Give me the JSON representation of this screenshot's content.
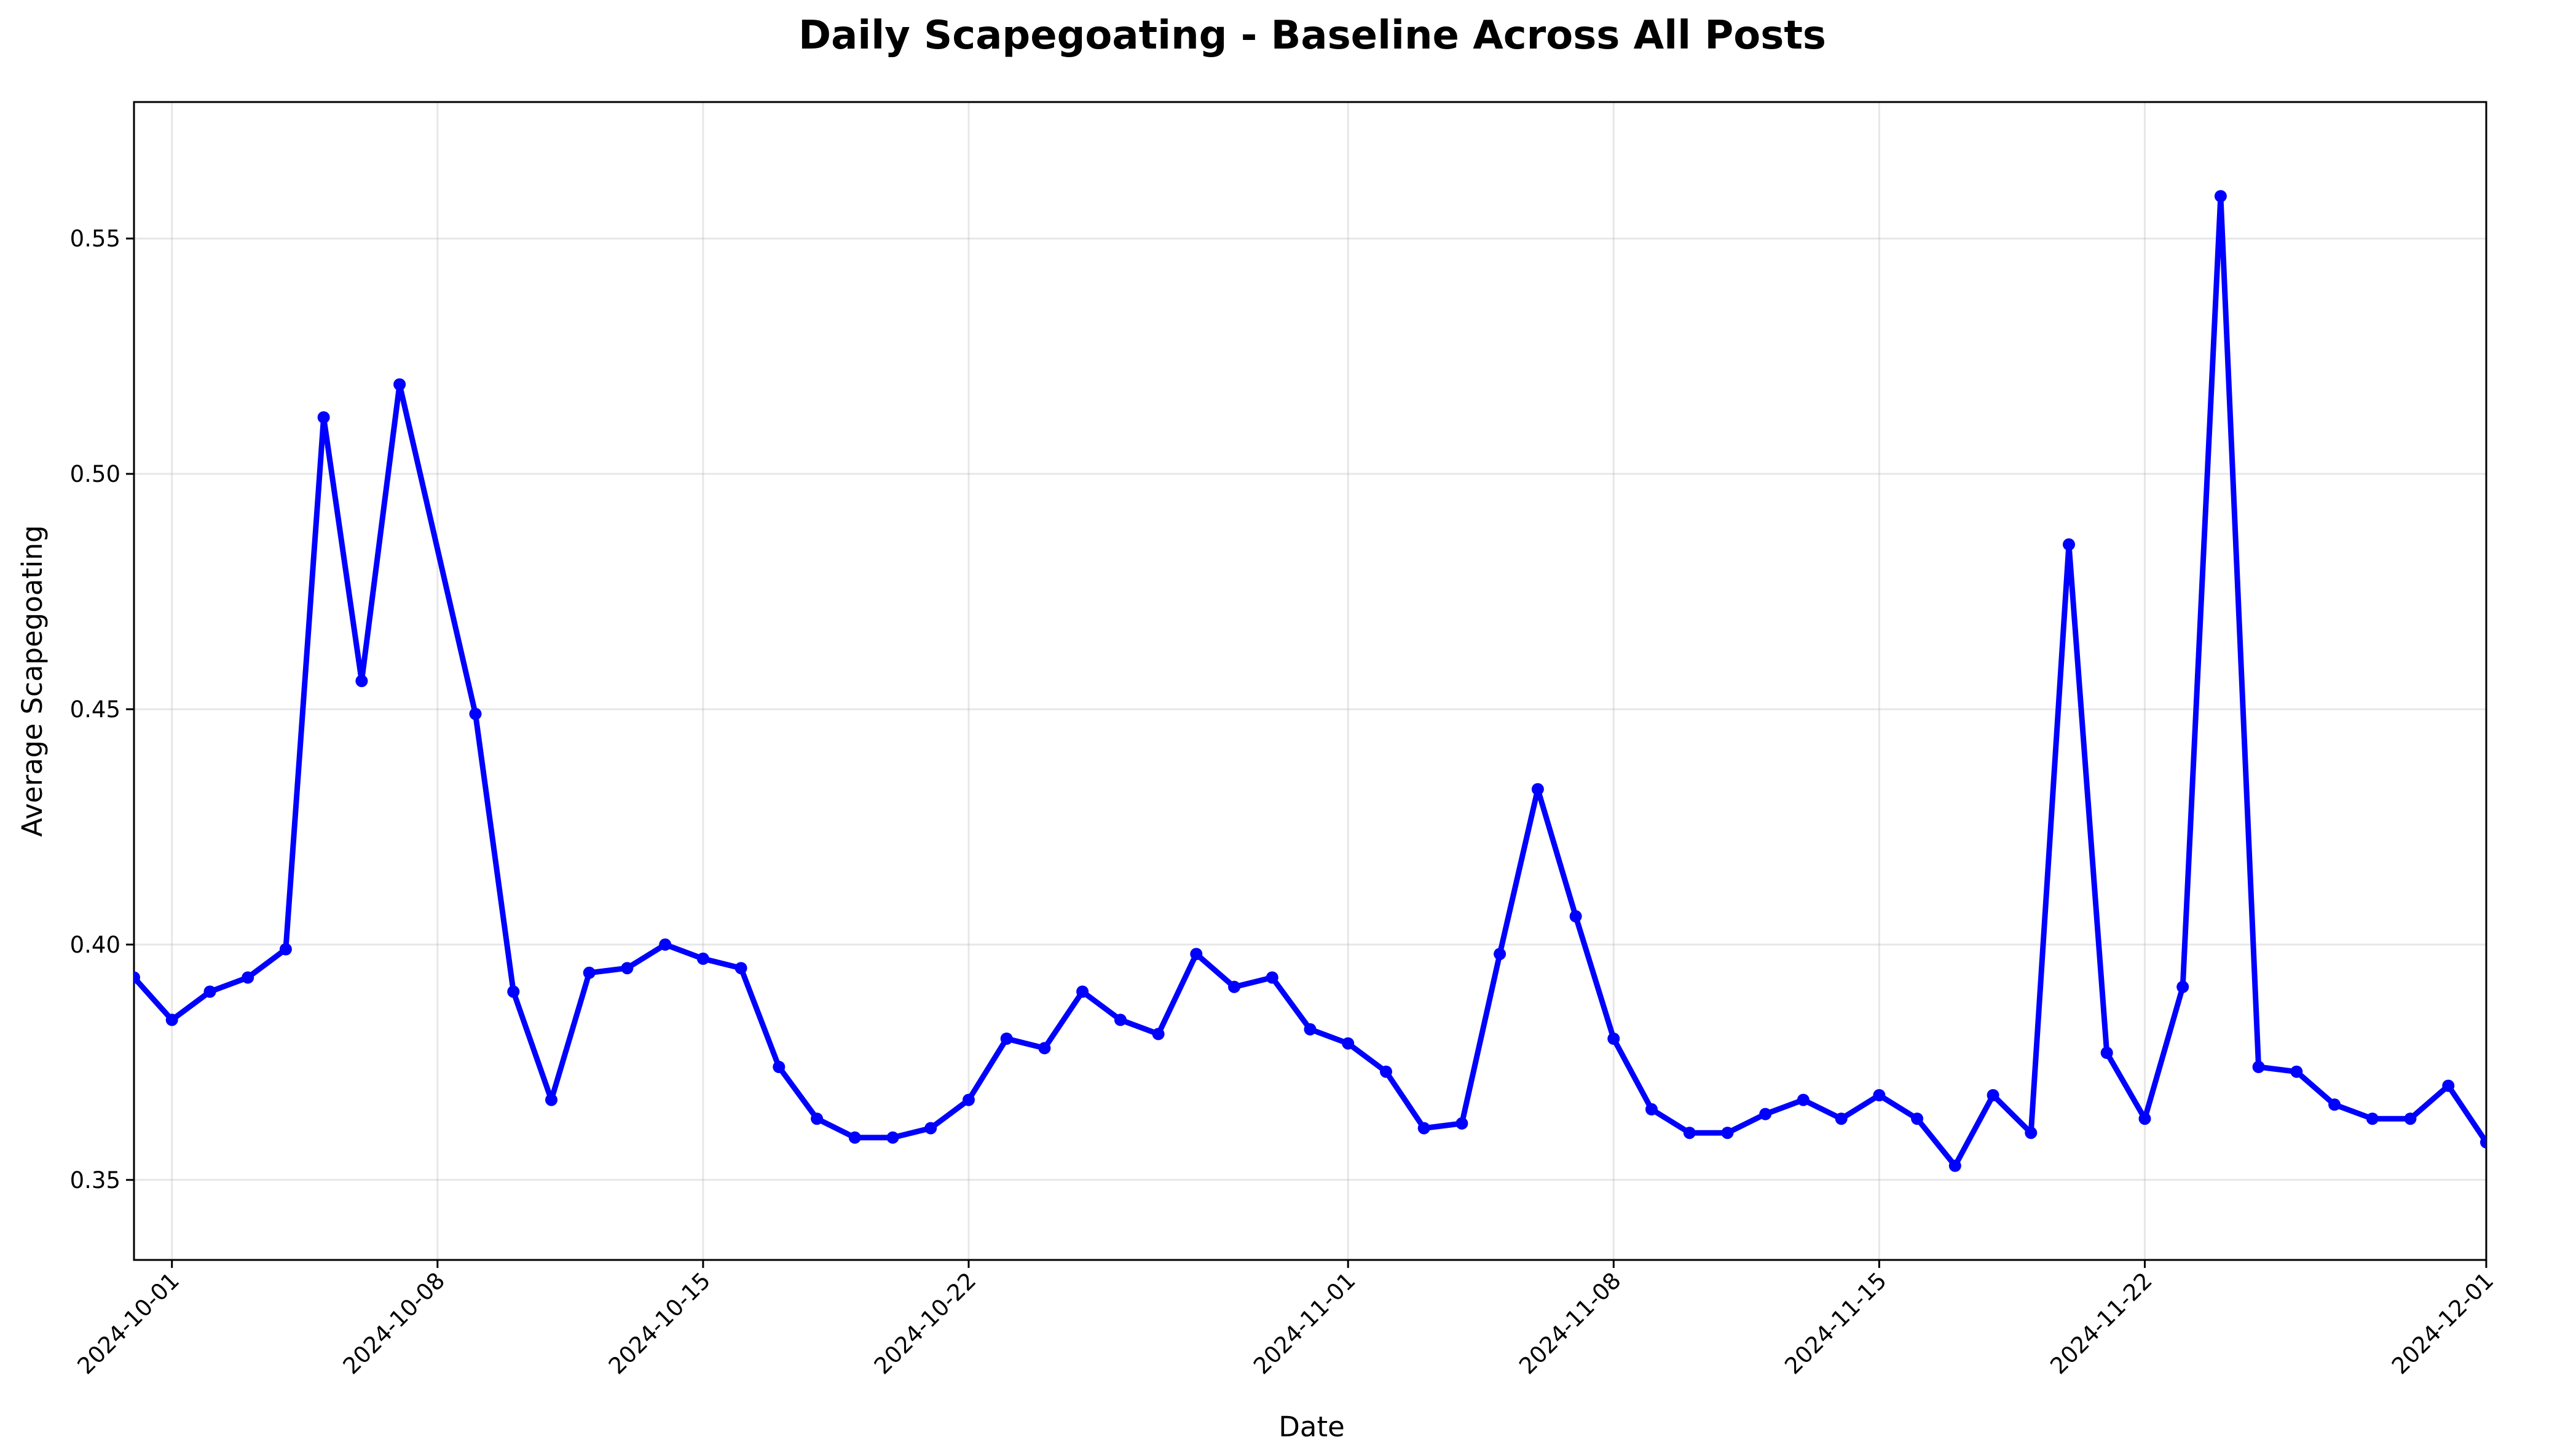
{
  "chart_data": {
    "type": "line",
    "title": "Daily Scapegoating - Baseline Across All Posts",
    "xlabel": "Date",
    "ylabel": "Average Scapegoating",
    "x_range": [
      "2024-09-30",
      "2024-12-01"
    ],
    "ylim": [
      0.333,
      0.579
    ],
    "grid": true,
    "legend": "none",
    "line_color": "#0000ff",
    "x_ticks": [
      "2024-10-01",
      "2024-10-08",
      "2024-10-15",
      "2024-10-22",
      "2024-11-01",
      "2024-11-08",
      "2024-11-15",
      "2024-11-22",
      "2024-12-01"
    ],
    "y_ticks": [
      "0.35",
      "0.40",
      "0.45",
      "0.50",
      "0.55"
    ],
    "series": [
      {
        "x": [
          "2024-09-30",
          "2024-10-01",
          "2024-10-02",
          "2024-10-03",
          "2024-10-04",
          "2024-10-05",
          "2024-10-06",
          "2024-10-07",
          "2024-10-09",
          "2024-10-10",
          "2024-10-11",
          "2024-10-12",
          "2024-10-13",
          "2024-10-14",
          "2024-10-15",
          "2024-10-16",
          "2024-10-17",
          "2024-10-18",
          "2024-10-19",
          "2024-10-20",
          "2024-10-21",
          "2024-10-22",
          "2024-10-23",
          "2024-10-24",
          "2024-10-25",
          "2024-10-26",
          "2024-10-27",
          "2024-10-28",
          "2024-10-29",
          "2024-10-30",
          "2024-10-31",
          "2024-11-01",
          "2024-11-02",
          "2024-11-03",
          "2024-11-04",
          "2024-11-05",
          "2024-11-06",
          "2024-11-07",
          "2024-11-08",
          "2024-11-09",
          "2024-11-10",
          "2024-11-11",
          "2024-11-12",
          "2024-11-13",
          "2024-11-14",
          "2024-11-15",
          "2024-11-16",
          "2024-11-17",
          "2024-11-18",
          "2024-11-19",
          "2024-11-20",
          "2024-11-21",
          "2024-11-22",
          "2024-11-23",
          "2024-11-24",
          "2024-11-25",
          "2024-11-26",
          "2024-11-27",
          "2024-11-28",
          "2024-11-29",
          "2024-11-30",
          "2024-12-01"
        ],
        "y": [
          0.393,
          0.384,
          0.39,
          0.393,
          0.399,
          0.512,
          0.456,
          0.519,
          0.449,
          0.39,
          0.367,
          0.394,
          0.395,
          0.4,
          0.397,
          0.395,
          0.374,
          0.363,
          0.359,
          0.359,
          0.361,
          0.367,
          0.38,
          0.378,
          0.39,
          0.384,
          0.381,
          0.398,
          0.391,
          0.393,
          0.382,
          0.379,
          0.373,
          0.361,
          0.362,
          0.398,
          0.433,
          0.406,
          0.38,
          0.365,
          0.36,
          0.36,
          0.364,
          0.367,
          0.363,
          0.368,
          0.363,
          0.353,
          0.368,
          0.36,
          0.485,
          0.377,
          0.363,
          0.391,
          0.559,
          0.374,
          0.373,
          0.366,
          0.363,
          0.363,
          0.37,
          0.358
        ]
      }
    ]
  }
}
